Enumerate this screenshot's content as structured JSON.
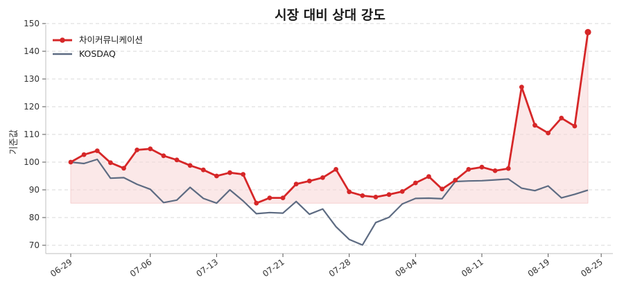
{
  "chart_data": {
    "type": "line",
    "title": "시장 대비 상대 강도",
    "xlabel": "",
    "ylabel": "기준값",
    "ylim": [
      67,
      151
    ],
    "yticks": [
      70,
      80,
      90,
      100,
      110,
      120,
      130,
      140,
      150
    ],
    "xtick_labels": [
      "06-29",
      "07-06",
      "07-13",
      "07-21",
      "07-28",
      "08-04",
      "08-11",
      "08-19",
      "08-25"
    ],
    "xtick_index": [
      0,
      6,
      11,
      16,
      21,
      26,
      31,
      36,
      40
    ],
    "grid": "horizontal dashed",
    "legend_position": "top-left",
    "baseline_fill": 85.2,
    "colors": {
      "stock": "#d62728",
      "index": "#5d6b82",
      "fill": "#f8d6d6"
    },
    "series": [
      {
        "name": "차이커뮤니케이션",
        "values": [
          100.0,
          102.7,
          104.1,
          99.8,
          97.8,
          104.4,
          104.8,
          102.3,
          100.8,
          98.8,
          97.2,
          95.0,
          96.2,
          95.6,
          85.2,
          87.1,
          87.1,
          92.1,
          93.2,
          94.4,
          97.4,
          89.3,
          87.9,
          87.4,
          88.3,
          89.4,
          92.5,
          94.8,
          90.3,
          93.5,
          97.4,
          98.2,
          96.9,
          97.7,
          127.1,
          113.3,
          110.5,
          115.9,
          113.0,
          146.9
        ]
      },
      {
        "name": "KOSDAQ",
        "values": [
          100.0,
          99.5,
          101.0,
          94.2,
          94.4,
          92.0,
          90.2,
          85.4,
          86.3,
          90.9,
          86.9,
          85.2,
          90.0,
          86.0,
          81.4,
          81.8,
          81.6,
          85.8,
          81.2,
          83.1,
          76.7,
          72.1,
          70.1,
          78.2,
          80.1,
          84.9,
          86.9,
          87.0,
          86.8,
          93.0,
          93.2,
          93.3,
          93.6,
          93.9,
          90.6,
          89.7,
          91.4,
          87.1,
          88.4,
          89.9
        ]
      }
    ]
  }
}
